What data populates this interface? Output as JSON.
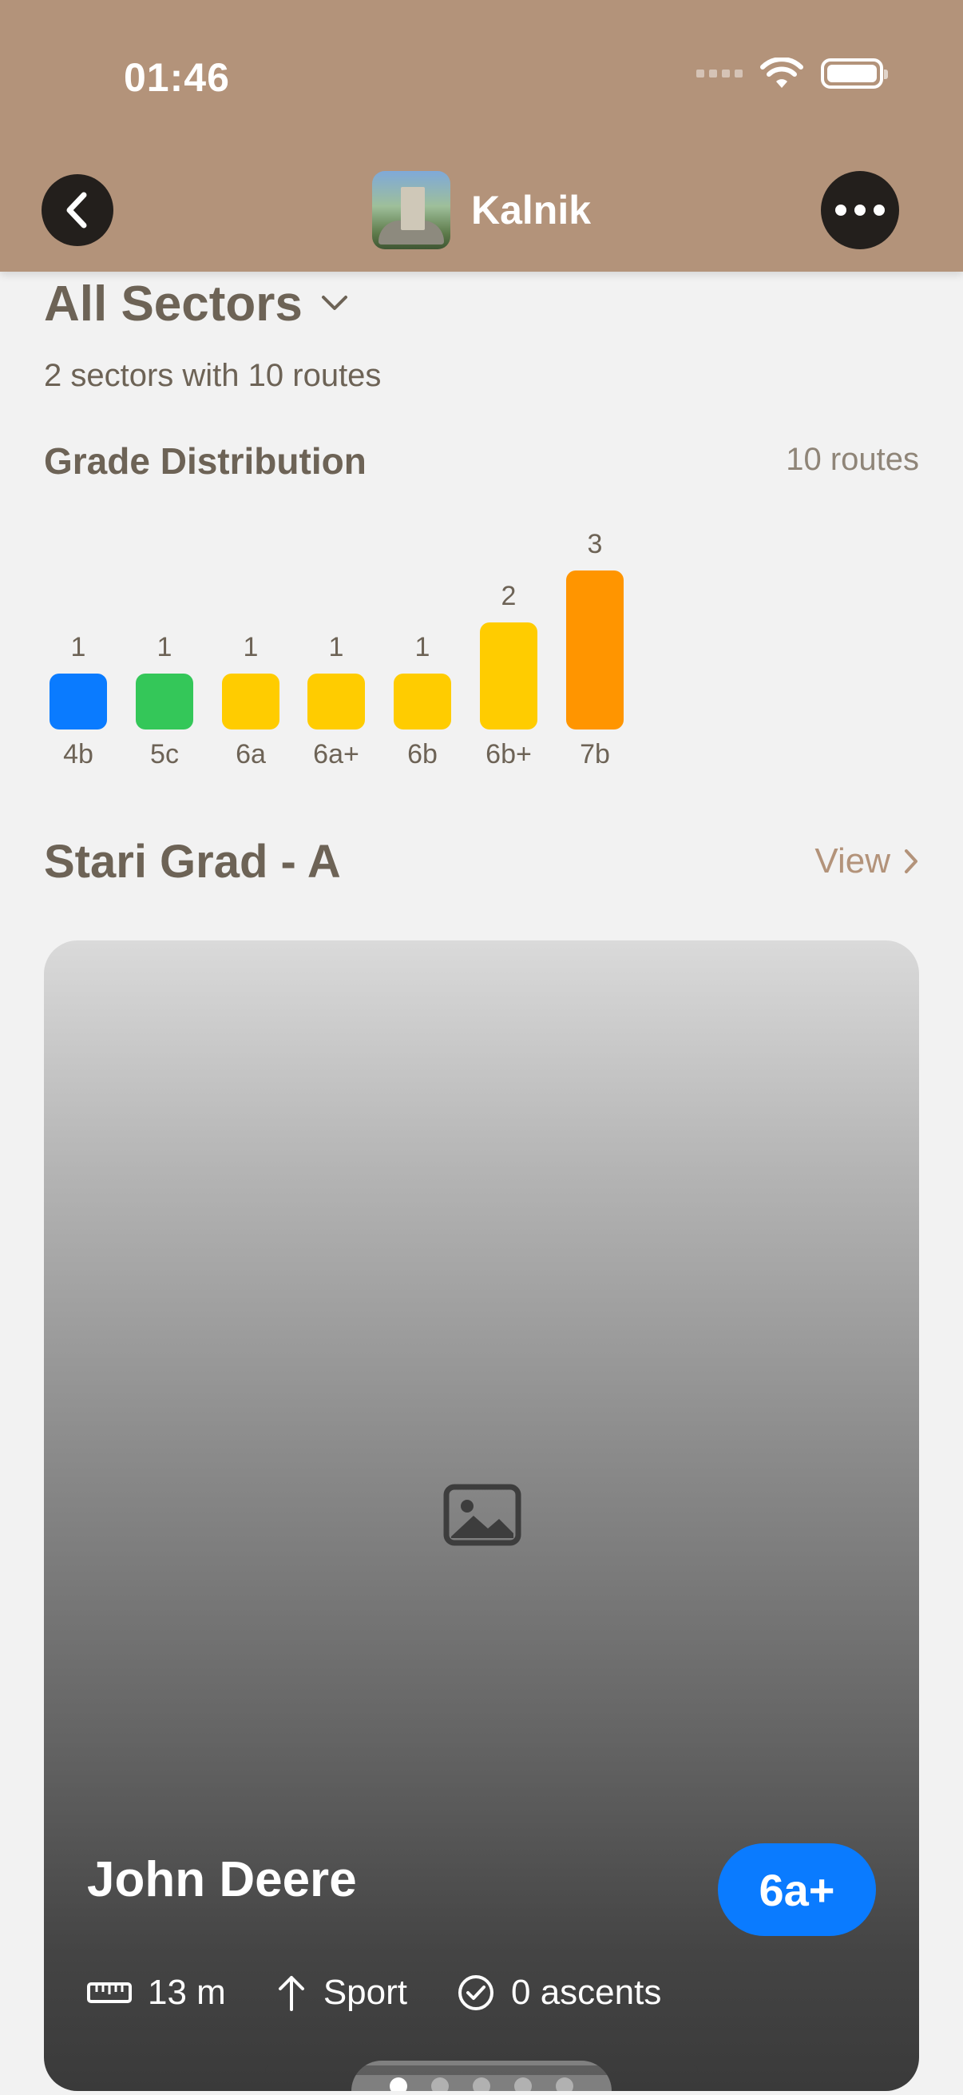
{
  "status": {
    "time": "01:46"
  },
  "header": {
    "title": "Kalnik"
  },
  "sectors": {
    "title": "All Sectors",
    "subtitle": "2 sectors with 10 routes"
  },
  "grade_distribution": {
    "title": "Grade Distribution",
    "count": "10 routes"
  },
  "chart_data": {
    "type": "bar",
    "categories": [
      "4b",
      "5c",
      "6a",
      "6a+",
      "6b",
      "6b+",
      "7b"
    ],
    "values": [
      1,
      1,
      1,
      1,
      1,
      2,
      3
    ],
    "colors": [
      "#0a7bff",
      "#34c759",
      "#ffcc00",
      "#ffcc00",
      "#ffcc00",
      "#ffcc00",
      "#ff9500"
    ],
    "title": "",
    "xlabel": "",
    "ylabel": "",
    "ylim": [
      0,
      3
    ],
    "grid": false,
    "legend": "none"
  },
  "sector": {
    "name": "Stari Grad - A",
    "view_label": "View"
  },
  "route_card": {
    "name": "John Deere",
    "grade": "6a+",
    "length": "13 m",
    "type": "Sport",
    "ascents": "0 ascents",
    "page_count": 5,
    "active_page": 1
  },
  "icons": {
    "back": "chevron-left-icon",
    "more": "ellipsis-icon",
    "dropdown": "chevron-down-icon",
    "view": "chevron-right-icon",
    "photo_placeholder": "photo-icon",
    "length": "ruler-icon",
    "type": "arrow-up-icon",
    "ascents": "checkmark-circle-icon"
  }
}
